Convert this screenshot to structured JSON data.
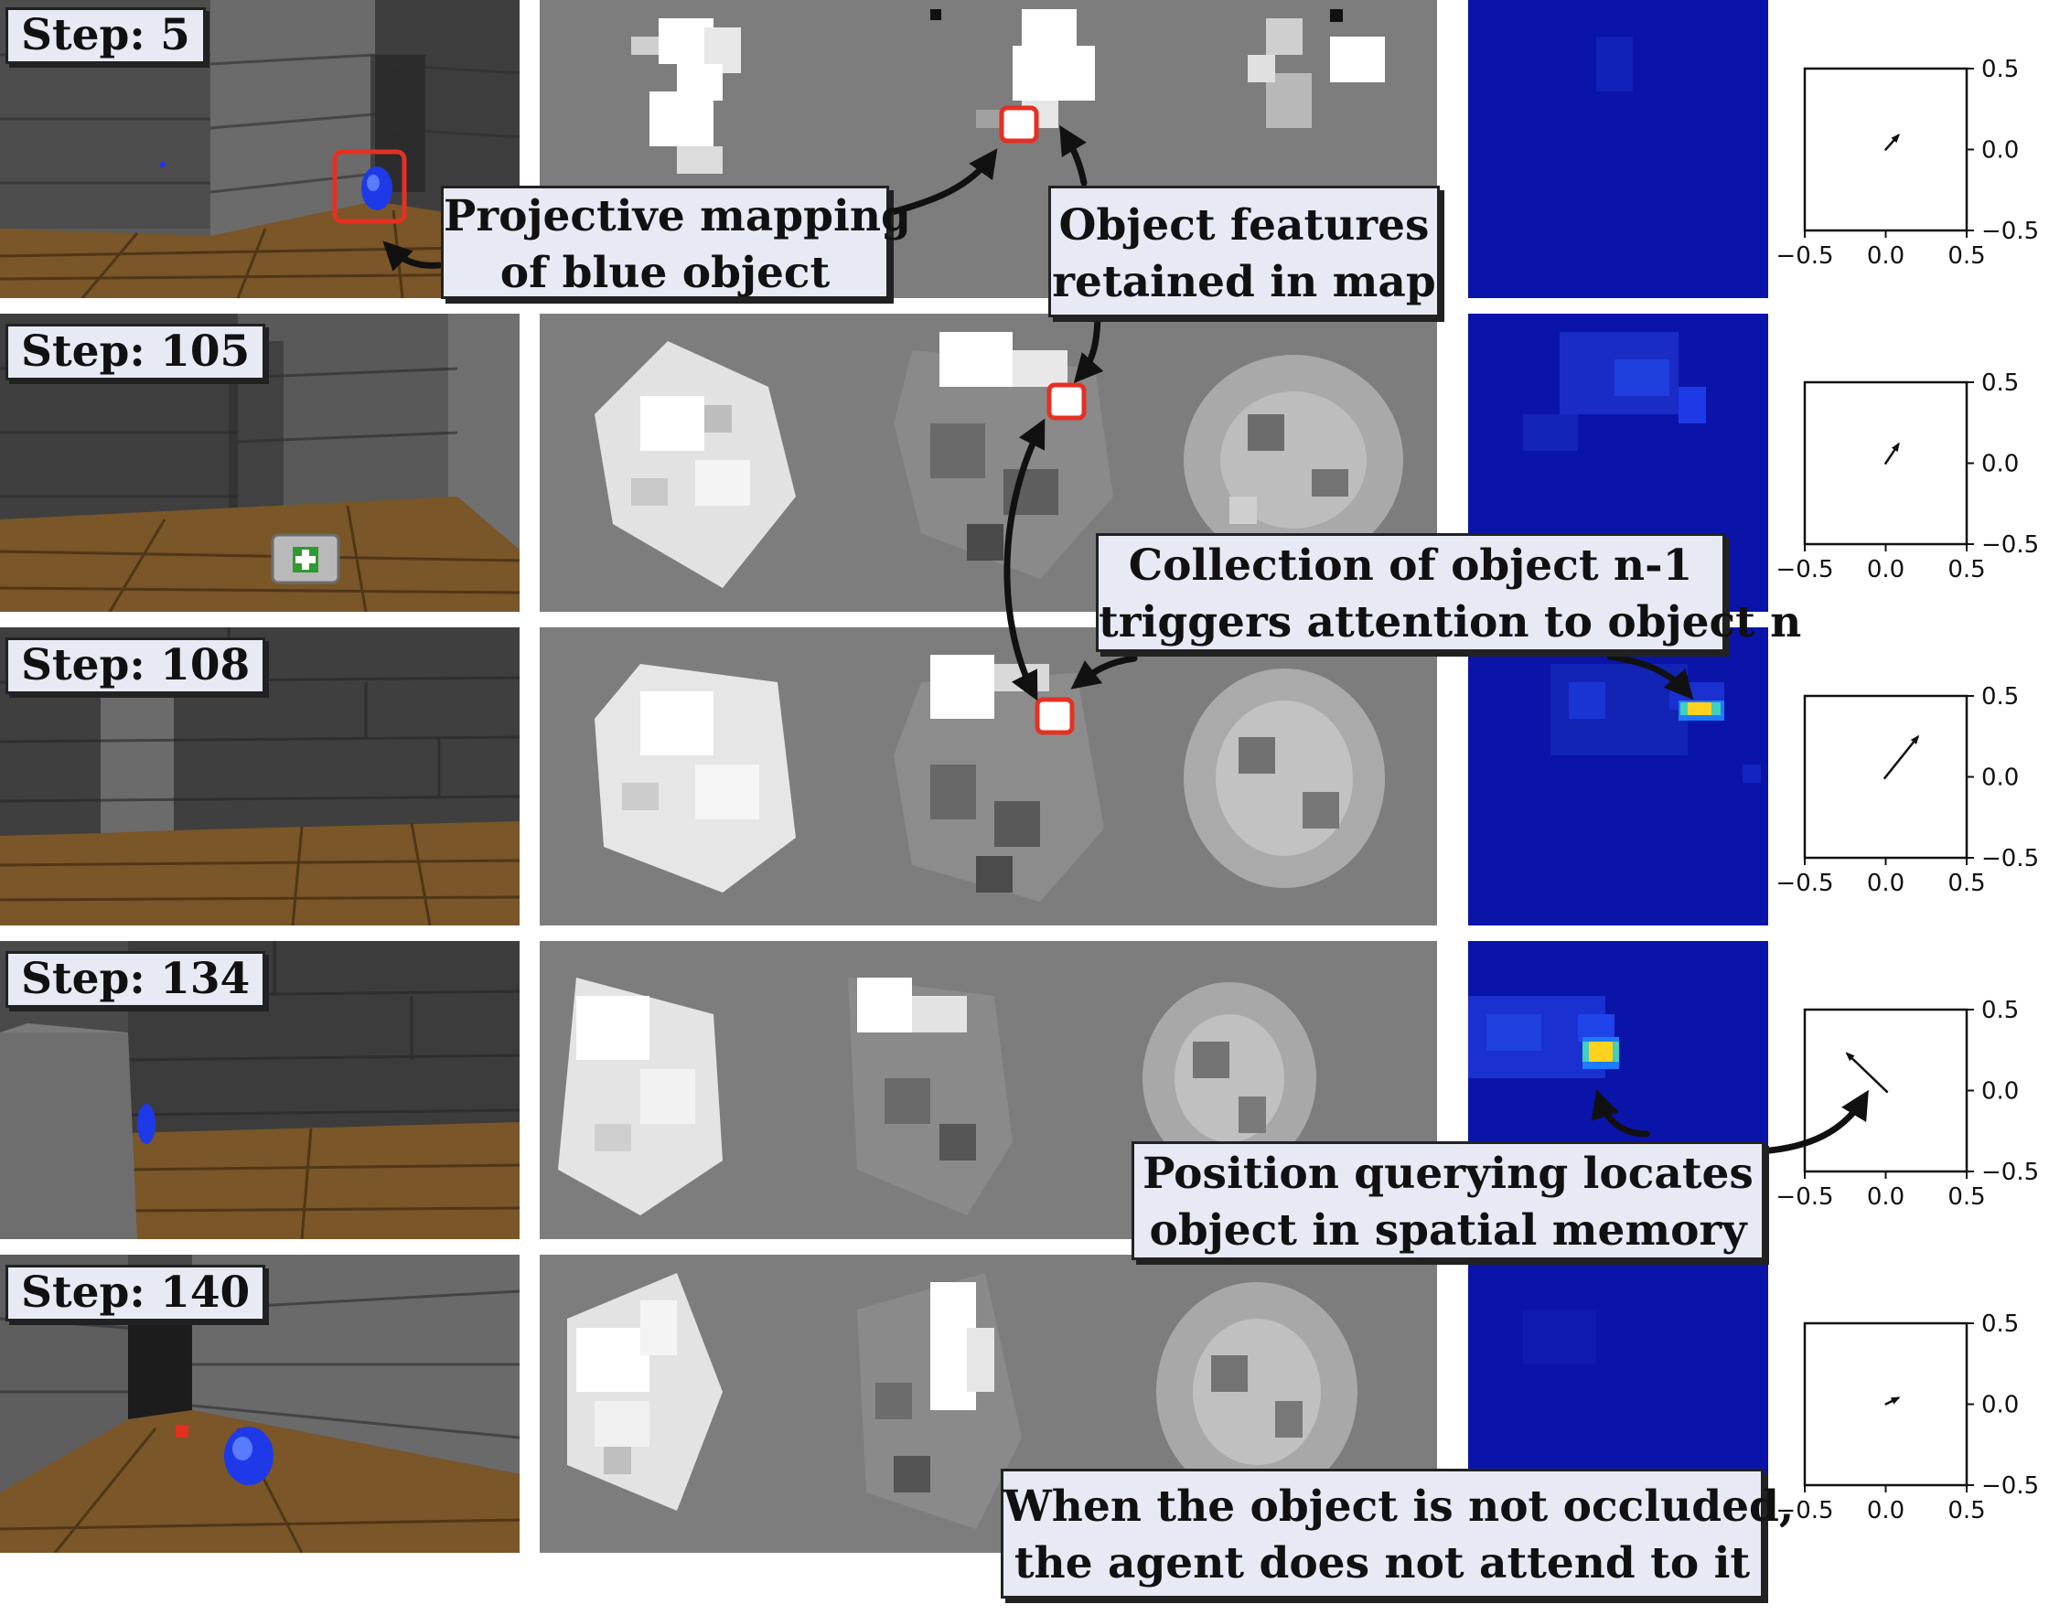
{
  "rows": [
    {
      "step_label": "Step: 5"
    },
    {
      "step_label": "Step: 105"
    },
    {
      "step_label": "Step: 108"
    },
    {
      "step_label": "Step: 134"
    },
    {
      "step_label": "Step: 140"
    }
  ],
  "callouts": {
    "projective": [
      "Projective mapping",
      "of blue object"
    ],
    "features": [
      "Object features",
      "retained in map"
    ],
    "collection": [
      "Collection of object n-1",
      "triggers attention to object n"
    ],
    "position": [
      "Position querying locates",
      "object in  spatial memory"
    ],
    "occluded": [
      "When the object is not occluded,",
      "the agent does not attend to it"
    ]
  },
  "quiver": {
    "x_ticks": [
      "−0.5",
      "0.0",
      "0.5"
    ],
    "y_ticks": [
      "0.5",
      "0.0",
      "−0.5"
    ],
    "arrows": [
      {
        "dx": 0.08,
        "dy": 0.09
      },
      {
        "dx": 0.08,
        "dy": 0.12
      },
      {
        "dx": 0.2,
        "dy": 0.25
      },
      {
        "dx": -0.24,
        "dy": 0.23
      },
      {
        "dx": 0.08,
        "dy": 0.04
      }
    ]
  },
  "colors": {
    "annotation_box": "#e7eaf4",
    "highlight": "#e53024",
    "heatmap_low": "#0a14a8",
    "heatmap_peak": "#ffd21e"
  }
}
